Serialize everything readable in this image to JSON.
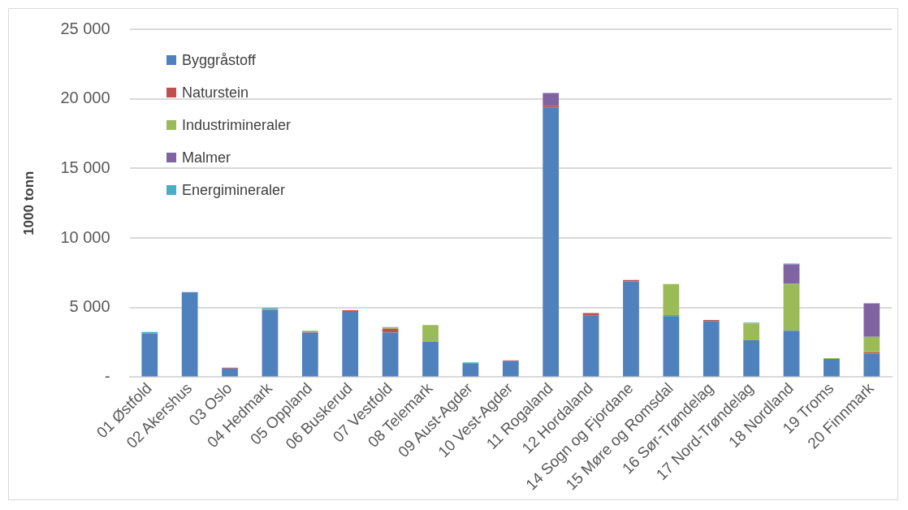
{
  "chart_data": {
    "type": "bar",
    "stacked": true,
    "ylabel": "1000 tonn",
    "categories": [
      "01 Østfold",
      "02 Akershus",
      "03 Oslo",
      "04 Hedmark",
      "05 Oppland",
      "06 Buskerud",
      "07 Vestfold",
      "08 Telemark",
      "09 Aust-Agder",
      "10 Vest-Agder",
      "11 Rogaland",
      "12 Hordaland",
      "14 Sogn og Fjordane",
      "15 Møre og Romsdal",
      "16 Sør-Trøndelag",
      "17 Nord-Trøndelag",
      "18 Nordland",
      "19 Troms",
      "20 Finnmark"
    ],
    "series": [
      {
        "name": "Byggråstoff",
        "color": "#4f81bd",
        "values": [
          3150,
          6100,
          620,
          4850,
          3200,
          4750,
          3200,
          2550,
          1000,
          1150,
          19350,
          4420,
          6880,
          4380,
          4040,
          2650,
          3340,
          1310,
          1690
        ]
      },
      {
        "name": "Naturstein",
        "color": "#c0504d",
        "values": [
          null,
          null,
          60,
          null,
          60,
          60,
          280,
          null,
          null,
          60,
          120,
          180,
          100,
          60,
          70,
          null,
          null,
          null,
          100
        ]
      },
      {
        "name": "Industrimineraler",
        "color": "#9bbb59",
        "values": [
          null,
          null,
          null,
          50,
          70,
          null,
          60,
          1200,
          null,
          null,
          null,
          null,
          null,
          2250,
          null,
          1210,
          3370,
          60,
          1110
        ]
      },
      {
        "name": "Malmer",
        "color": "#8064a2",
        "values": [
          null,
          null,
          null,
          null,
          null,
          null,
          null,
          null,
          null,
          null,
          950,
          null,
          null,
          null,
          null,
          null,
          1390,
          null,
          2410
        ]
      },
      {
        "name": "Energimineraler",
        "color": "#4bacc6",
        "values": [
          100,
          null,
          null,
          80,
          null,
          null,
          60,
          null,
          60,
          null,
          null,
          null,
          null,
          null,
          null,
          60,
          70,
          null,
          null
        ]
      }
    ],
    "ylim": [
      0,
      25000
    ],
    "yticks": [
      {
        "value": 0,
        "label": "-"
      },
      {
        "value": 5000,
        "label": "5 000"
      },
      {
        "value": 10000,
        "label": "10 000"
      },
      {
        "value": 15000,
        "label": "15 000"
      },
      {
        "value": 20000,
        "label": "20 000"
      },
      {
        "value": 25000,
        "label": "25 000"
      }
    ],
    "grid": "y",
    "legend": "top left"
  }
}
